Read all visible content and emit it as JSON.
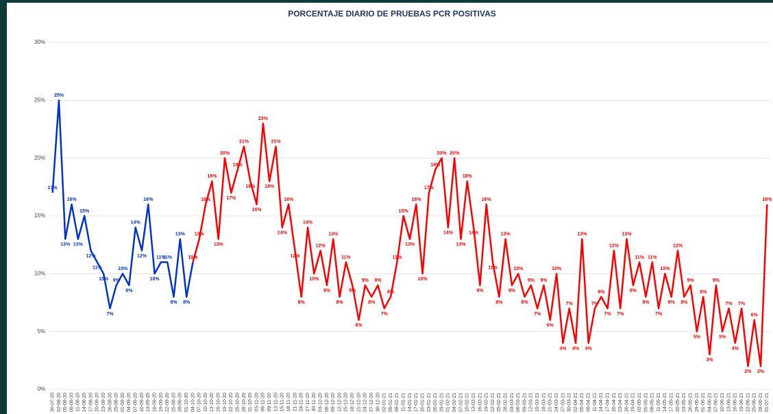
{
  "chart_data": {
    "type": "line",
    "title": "PORCENTAJE DIARIO DE PRUEBAS PCR POSITIVAS",
    "categories": [
      "30-07-20",
      "02-08-20",
      "05-08-20",
      "08-08-20",
      "11-08-20",
      "14-08-20",
      "17-08-20",
      "20-08-20",
      "23-08-20",
      "26-08-20",
      "29-08-20",
      "01-09-20",
      "04-09-20",
      "07-09-20",
      "10-09-20",
      "13-09-20",
      "16-09-20",
      "19-09-20",
      "22-09-20",
      "25-09-20",
      "28-09-20",
      "01-10-20",
      "04-10-20",
      "07-10-20",
      "10-10-20",
      "13-10-20",
      "16-10-20",
      "19-10-20",
      "22-10-20",
      "25-10-20",
      "28-10-20",
      "31-10-20",
      "03-11-20",
      "06-11-20",
      "09-11-20",
      "12-11-20",
      "15-11-20",
      "18-11-20",
      "21-11-20",
      "24-11-20",
      "27-11-20",
      "30-11-20",
      "03-12-20",
      "06-12-20",
      "09-12-20",
      "12-12-20",
      "15-12-20",
      "18-12-20",
      "21-12-20",
      "24-12-20",
      "27-12-20",
      "30-12-20",
      "02-01-21",
      "05-01-21",
      "08-01-21",
      "11-01-21",
      "14-01-21",
      "17-01-21",
      "20-01-21",
      "23-01-21",
      "26-01-21",
      "29-01-21",
      "01-02-21",
      "04-02-21",
      "07-02-21",
      "10-02-21",
      "13-02-21",
      "16-02-21",
      "19-02-21",
      "22-02-21",
      "25-02-21",
      "28-02-21",
      "03-03-21",
      "06-03-21",
      "09-03-21",
      "12-03-21",
      "15-03-21",
      "18-03-21",
      "21-03-21",
      "24-03-21",
      "27-03-21",
      "30-03-21",
      "02-04-21",
      "05-04-21",
      "08-04-21",
      "11-04-21",
      "14-04-21",
      "17-04-21",
      "20-04-21",
      "23-04-21",
      "26-04-21",
      "29-04-21",
      "02-05-21",
      "05-05-21",
      "08-05-21",
      "11-05-21",
      "14-05-21",
      "17-05-21",
      "20-05-21",
      "23-05-21",
      "26-05-21",
      "29-05-21",
      "01-06-21",
      "04-06-21",
      "07-06-21",
      "10-06-21",
      "13-06-21",
      "16-06-21",
      "19-06-21",
      "22-06-21",
      "25-06-21",
      "28-06-21",
      "01-07-21"
    ],
    "series": [
      {
        "color": "#0033cc",
        "values": [
          17,
          25,
          13,
          16,
          13,
          15,
          12,
          11,
          10,
          7,
          9,
          10,
          9,
          14,
          12,
          16,
          10,
          11,
          11,
          8,
          13,
          8,
          11,
          null,
          null,
          null,
          null,
          null,
          null,
          null,
          null,
          null,
          null,
          null,
          null,
          null,
          null,
          null,
          null,
          null,
          null,
          null,
          null,
          null,
          null,
          null,
          null,
          null,
          null,
          null,
          null,
          null,
          null,
          null,
          null,
          null,
          null,
          null,
          null,
          null,
          null,
          null,
          null,
          null,
          null,
          null,
          null,
          null,
          null,
          null,
          null,
          null,
          null,
          null,
          null,
          null,
          null,
          null,
          null,
          null,
          null,
          null,
          null,
          null,
          null,
          null,
          null,
          null,
          null,
          null,
          null,
          null,
          null,
          null,
          null,
          null,
          null,
          null,
          null,
          null,
          null,
          null,
          null,
          null,
          null,
          null,
          null,
          null,
          null,
          null,
          null,
          null,
          null
        ],
        "value_labels": [
          "17%",
          "25%",
          "13%",
          "16%",
          "13%",
          "15%",
          "12%",
          "11%",
          "10%",
          "7%",
          "9%",
          "10%",
          "9%",
          "14%",
          "12%",
          "16%",
          "10%",
          "11%",
          "11%",
          "8%",
          "13%",
          "8%",
          "11%",
          null,
          null,
          null,
          null,
          null,
          null,
          null,
          null,
          null,
          null,
          null,
          null,
          null,
          null,
          null,
          null,
          null,
          null,
          null,
          null,
          null,
          null,
          null,
          null,
          null,
          null,
          null,
          null,
          null,
          null,
          null,
          null,
          null,
          null,
          null,
          null,
          null,
          null,
          null,
          null,
          null,
          null,
          null,
          null,
          null,
          null,
          null,
          null,
          null,
          null,
          null,
          null,
          null,
          null,
          null,
          null,
          null,
          null,
          null,
          null,
          null,
          null,
          null,
          null,
          null,
          null,
          null,
          null,
          null,
          null,
          null,
          null,
          null,
          null,
          null,
          null,
          null,
          null,
          null,
          null,
          null,
          null,
          null,
          null,
          null,
          null,
          null,
          null,
          null,
          null
        ]
      },
      {
        "color": "#ff0000",
        "values": [
          null,
          null,
          null,
          null,
          null,
          null,
          null,
          null,
          null,
          null,
          null,
          null,
          null,
          null,
          null,
          null,
          null,
          null,
          null,
          null,
          null,
          null,
          11,
          13,
          16,
          18,
          13,
          20,
          17,
          19,
          21,
          18,
          16,
          23,
          18,
          21,
          14,
          16,
          12,
          8,
          14,
          10,
          12,
          9,
          13,
          8,
          11,
          9,
          6,
          9,
          8,
          9,
          7,
          8,
          11,
          15,
          13,
          16,
          10,
          17,
          19,
          20,
          14,
          20,
          13,
          18,
          14,
          9,
          16,
          11,
          8,
          13,
          9,
          10,
          8,
          9,
          7,
          9,
          6,
          10,
          4,
          7,
          4,
          13,
          4,
          7,
          8,
          7,
          12,
          7,
          13,
          9,
          11,
          8,
          11,
          7,
          10,
          8,
          12,
          8,
          9,
          5,
          8,
          3,
          9,
          5,
          7,
          4,
          7,
          2,
          6,
          2,
          16
        ],
        "value_labels": [
          null,
          null,
          null,
          null,
          null,
          null,
          null,
          null,
          null,
          null,
          null,
          null,
          null,
          null,
          null,
          null,
          null,
          null,
          null,
          null,
          null,
          null,
          "11%",
          "13%",
          "16%",
          "18%",
          "13%",
          "20%",
          "17%",
          "19%",
          "21%",
          "18%",
          "16%",
          "23%",
          "18%",
          "21%",
          "14%",
          "16%",
          "12%",
          "8%",
          "14%",
          "10%",
          "12%",
          "9%",
          "13%",
          "8%",
          "11%",
          "9%",
          "6%",
          "9%",
          "8%",
          "9%",
          "7%",
          "8%",
          "11%",
          "15%",
          "13%",
          "16%",
          "10%",
          "17%",
          "19%",
          "20%",
          "14%",
          "20%",
          "13%",
          "18%",
          "14%",
          "9%",
          "16%",
          "11%",
          "8%",
          "13%",
          "9%",
          "10%",
          "8%",
          "9%",
          "7%",
          "9%",
          "6%",
          "10%",
          "4%",
          "7%",
          "4%",
          "13%",
          "4%",
          "7%",
          "8%",
          "7%",
          "12%",
          "7%",
          "13%",
          "9%",
          "11%",
          "8%",
          "11%",
          "7%",
          "10%",
          "8%",
          "12%",
          "8%",
          "9%",
          "5%",
          "8%",
          "3%",
          "9%",
          "5%",
          "7%",
          "4%",
          "7%",
          "2%",
          "6%",
          "2%",
          "16%"
        ]
      }
    ],
    "ylim": [
      0,
      30
    ],
    "yticks": [
      {
        "value": 0,
        "label": "0%"
      },
      {
        "value": 5,
        "label": "5%"
      },
      {
        "value": 10,
        "label": "10%"
      },
      {
        "value": 15,
        "label": "15%"
      },
      {
        "value": 20,
        "label": "20%"
      },
      {
        "value": 25,
        "label": "25%"
      },
      {
        "value": 30,
        "label": "30%"
      }
    ],
    "grid": true
  }
}
